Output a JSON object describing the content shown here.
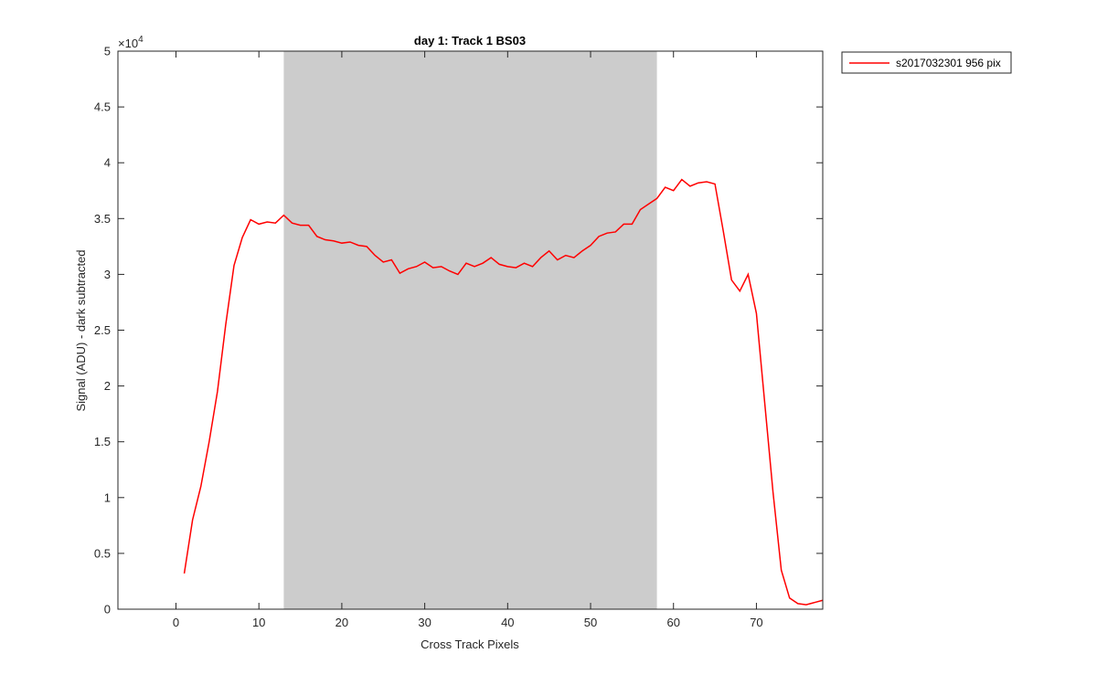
{
  "chart_data": {
    "type": "line",
    "title": "day 1: Track 1  BS03",
    "xlabel": "Cross Track Pixels",
    "ylabel": "Signal (ADU) - dark subtracted",
    "y_exponent_label": "×10",
    "y_exponent_power": "4",
    "xlim": [
      -7,
      78
    ],
    "ylim": [
      0,
      50000
    ],
    "xticks": [
      0,
      10,
      20,
      30,
      40,
      50,
      60,
      70
    ],
    "xtick_labels": [
      "0",
      "10",
      "20",
      "30",
      "40",
      "50",
      "60",
      "70"
    ],
    "yticks": [
      0,
      5000,
      10000,
      15000,
      20000,
      25000,
      30000,
      35000,
      40000,
      45000,
      50000
    ],
    "ytick_labels": [
      "0",
      "0.5",
      "1",
      "1.5",
      "2",
      "2.5",
      "3",
      "3.5",
      "4",
      "4.5",
      "5"
    ],
    "grid": false,
    "legend_position": "outside-top-right",
    "shaded_region": {
      "x_start": 13,
      "x_end": 58,
      "color": "#cccccc"
    },
    "series": [
      {
        "name": "s2017032301 956 pix",
        "color": "#ff0000",
        "x": [
          1,
          2,
          3,
          4,
          5,
          6,
          7,
          8,
          9,
          10,
          11,
          12,
          13,
          14,
          15,
          16,
          17,
          18,
          19,
          20,
          21,
          22,
          23,
          24,
          25,
          26,
          27,
          28,
          29,
          30,
          31,
          32,
          33,
          34,
          35,
          36,
          37,
          38,
          39,
          40,
          41,
          42,
          43,
          44,
          45,
          46,
          47,
          48,
          49,
          50,
          51,
          52,
          53,
          54,
          55,
          56,
          57,
          58,
          59,
          60,
          61,
          62,
          63,
          64,
          65,
          66,
          67,
          68,
          69,
          70,
          71,
          72,
          73,
          74,
          75,
          76,
          77,
          78
        ],
        "values": [
          3200,
          8000,
          11000,
          15000,
          19500,
          25500,
          30800,
          33300,
          34900,
          34500,
          34700,
          34600,
          35300,
          34600,
          34400,
          34400,
          33400,
          33100,
          33000,
          32800,
          32900,
          32600,
          32500,
          31700,
          31100,
          31300,
          30100,
          30500,
          30700,
          31100,
          30600,
          30700,
          30300,
          30000,
          31000,
          30700,
          31000,
          31500,
          30900,
          30700,
          30600,
          31000,
          30700,
          31500,
          32100,
          31300,
          31700,
          31500,
          32100,
          32600,
          33400,
          33700,
          33800,
          34500,
          34500,
          35800,
          36300,
          36800,
          37800,
          37500,
          38500,
          37900,
          38200,
          38300,
          38100,
          33900,
          29500,
          28500,
          30000,
          26500,
          18500,
          10500,
          3500,
          1000,
          500,
          400,
          600,
          800
        ]
      }
    ]
  }
}
